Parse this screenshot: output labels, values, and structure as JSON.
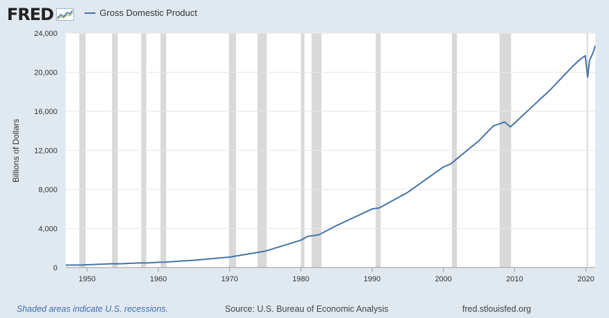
{
  "logo": {
    "text": "FRED",
    "icon": "trend-chart-icon"
  },
  "chart_data": {
    "type": "line",
    "title": "",
    "legend_position": "top-left",
    "xlabel": "",
    "ylabel": "Billions of Dollars",
    "xlim": [
      1947,
      2021.3
    ],
    "ylim": [
      0,
      24000
    ],
    "grid": true,
    "yticks": [
      0,
      4000,
      8000,
      12000,
      16000,
      20000,
      24000
    ],
    "ytick_labels": [
      "0",
      "4,000",
      "8,000",
      "12,000",
      "16,000",
      "20,000",
      "24,000"
    ],
    "xticks": [
      1950,
      1960,
      1970,
      1980,
      1990,
      2000,
      2010,
      2020
    ],
    "xtick_labels": [
      "1950",
      "1960",
      "1970",
      "1980",
      "1990",
      "2000",
      "2010",
      "2020"
    ],
    "line_color": "#4572a7",
    "recession_color": "#d9d9d9",
    "recessions": [
      [
        1948.9,
        1949.8
      ],
      [
        1953.5,
        1954.3
      ],
      [
        1957.6,
        1958.3
      ],
      [
        1960.3,
        1961.1
      ],
      [
        1969.9,
        1970.9
      ],
      [
        1973.9,
        1975.2
      ],
      [
        1980.0,
        1980.5
      ],
      [
        1981.5,
        1982.9
      ],
      [
        1990.5,
        1991.2
      ],
      [
        2001.2,
        2001.9
      ],
      [
        2007.9,
        2009.5
      ],
      [
        2020.1,
        2020.3
      ]
    ],
    "series": [
      {
        "name": "Gross Domestic Product",
        "x": [
          1947.0,
          1949.5,
          1950.0,
          1953.5,
          1954.5,
          1957.5,
          1958.5,
          1960.0,
          1961.0,
          1965.0,
          1970.0,
          1975.0,
          1980.0,
          1981.0,
          1982.5,
          1985.0,
          1990.0,
          1991.0,
          1995.0,
          2000.0,
          2001.0,
          2005.0,
          2007.0,
          2008.6,
          2009.4,
          2010.0,
          2015.0,
          2018.0,
          2019.0,
          2019.9,
          2020.25,
          2020.5,
          2021.0,
          2021.3
        ],
        "y": [
          245,
          270,
          280,
          390,
          380,
          480,
          470,
          540,
          560,
          740,
          1070,
          1680,
          2800,
          3200,
          3350,
          4300,
          6000,
          6100,
          7700,
          10300,
          10600,
          13000,
          14500,
          14900,
          14400,
          14800,
          18200,
          20500,
          21200,
          21700,
          19500,
          21200,
          22000,
          22700
        ]
      }
    ]
  },
  "footer": {
    "recessions_note": "Shaded areas indicate U.S. recessions.",
    "source": "Source: U.S. Bureau of Economic Analysis",
    "url": "fred.stlouisfed.org"
  }
}
